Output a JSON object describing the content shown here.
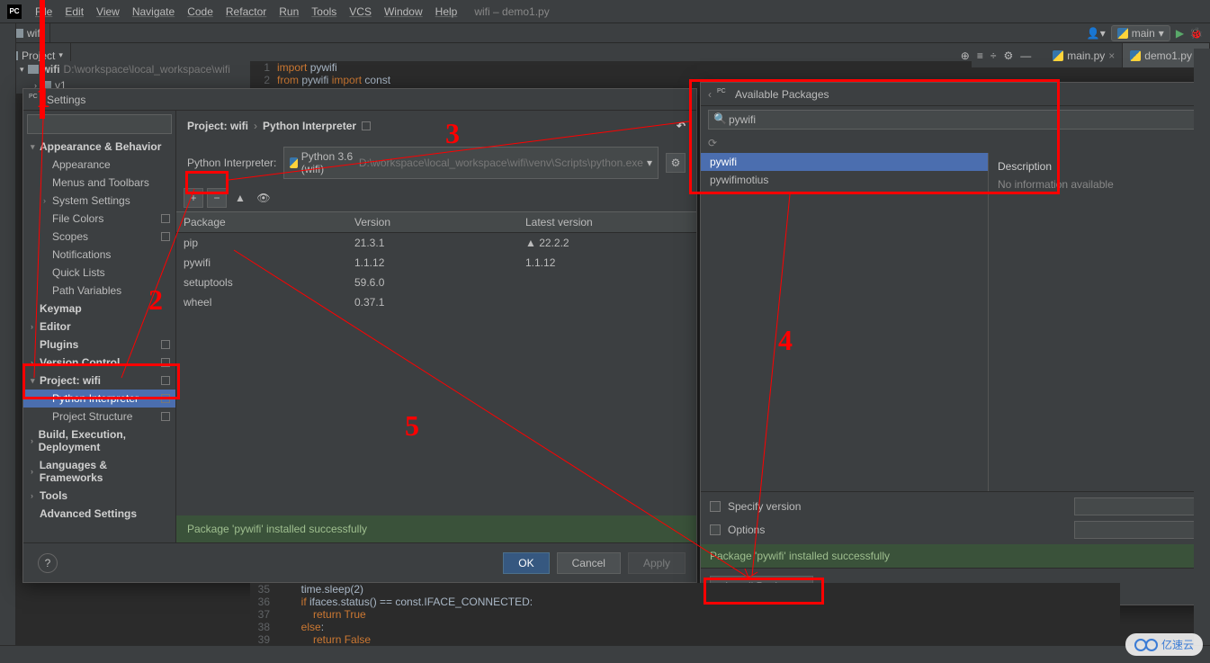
{
  "menubar": {
    "items": [
      "File",
      "Edit",
      "View",
      "Navigate",
      "Code",
      "Refactor",
      "Run",
      "Tools",
      "VCS",
      "Window",
      "Help"
    ],
    "title": "wifi – demo1.py"
  },
  "tabstrip": {
    "project_tab": "wifi"
  },
  "run_config": {
    "label": "main",
    "user_icon": "▾"
  },
  "toolbar": {
    "project_label": "Project",
    "tabs": [
      {
        "name": "main.py",
        "active": false
      },
      {
        "name": "demo1.py",
        "active": true
      }
    ]
  },
  "project_tree": {
    "root": "wifi",
    "root_path": "D:\\workspace\\local_workspace\\wifi",
    "child": "v1"
  },
  "editor_top": {
    "lines": [
      {
        "n": "1",
        "html": "import pywifi"
      },
      {
        "n": "2",
        "html": "from pywifi import const"
      }
    ]
  },
  "editor_bottom": {
    "lines": [
      {
        "n": "35",
        "text": "        time.sleep(2)"
      },
      {
        "n": "36",
        "text": "        if ifaces.status() == const.IFACE_CONNECTED:"
      },
      {
        "n": "37",
        "text": "            return True"
      },
      {
        "n": "38",
        "text": "        else:"
      },
      {
        "n": "39",
        "text": "            return False"
      }
    ]
  },
  "settings": {
    "title": "Settings",
    "search_placeholder": "",
    "tree": [
      {
        "label": "Appearance & Behavior",
        "level": 0,
        "chev": "▾",
        "bold": true
      },
      {
        "label": "Appearance",
        "level": 1
      },
      {
        "label": "Menus and Toolbars",
        "level": 1
      },
      {
        "label": "System Settings",
        "level": 1,
        "chev": "›"
      },
      {
        "label": "File Colors",
        "level": 1,
        "badge": true
      },
      {
        "label": "Scopes",
        "level": 1,
        "badge": true
      },
      {
        "label": "Notifications",
        "level": 1
      },
      {
        "label": "Quick Lists",
        "level": 1
      },
      {
        "label": "Path Variables",
        "level": 1
      },
      {
        "label": "Keymap",
        "level": 0,
        "bold": true
      },
      {
        "label": "Editor",
        "level": 0,
        "chev": "›",
        "bold": true
      },
      {
        "label": "Plugins",
        "level": 0,
        "bold": true,
        "badge": true
      },
      {
        "label": "Version Control",
        "level": 0,
        "chev": "›",
        "bold": true,
        "badge": true
      },
      {
        "label": "Project: wifi",
        "level": 0,
        "chev": "▾",
        "bold": true,
        "badge": true
      },
      {
        "label": "Python Interpreter",
        "level": 1,
        "selected": true,
        "badge": true
      },
      {
        "label": "Project Structure",
        "level": 1,
        "badge": true
      },
      {
        "label": "Build, Execution, Deployment",
        "level": 0,
        "chev": "›",
        "bold": true
      },
      {
        "label": "Languages & Frameworks",
        "level": 0,
        "chev": "›",
        "bold": true
      },
      {
        "label": "Tools",
        "level": 0,
        "chev": "›",
        "bold": true
      },
      {
        "label": "Advanced Settings",
        "level": 0,
        "bold": true
      }
    ],
    "breadcrumb": {
      "root": "Project: wifi",
      "leaf": "Python Interpreter"
    },
    "interpreter_label": "Python Interpreter:",
    "interpreter_name": "Python 3.6 (wifi)",
    "interpreter_path": "D:\\workspace\\local_workspace\\wifi\\venv\\Scripts\\python.exe",
    "package_columns": {
      "pkg": "Package",
      "ver": "Version",
      "lat": "Latest version"
    },
    "packages": [
      {
        "name": "pip",
        "version": "21.3.1",
        "latest": "22.2.2",
        "upgrade": true
      },
      {
        "name": "pywifi",
        "version": "1.1.12",
        "latest": "1.1.12"
      },
      {
        "name": "setuptools",
        "version": "59.6.0",
        "latest": ""
      },
      {
        "name": "wheel",
        "version": "0.37.1",
        "latest": ""
      }
    ],
    "status": "Package 'pywifi' installed successfully",
    "buttons": {
      "ok": "OK",
      "cancel": "Cancel",
      "apply": "Apply"
    }
  },
  "avail": {
    "title": "Available Packages",
    "search_value": "pywifi",
    "results": [
      {
        "name": "pywifi",
        "selected": true
      },
      {
        "name": "pywifimotius",
        "selected": false
      }
    ],
    "desc_label": "Description",
    "desc_text": "No information available",
    "opt_specify": "Specify version",
    "opt_options": "Options",
    "status": "Package 'pywifi' installed successfully",
    "install_btn": "Install Package"
  },
  "annotations": {
    "nums": [
      "1",
      "2",
      "3",
      "4",
      "5"
    ]
  },
  "watermark": "亿速云",
  "colors": {
    "bg": "#2b2b2b",
    "panel": "#3c3f41",
    "select": "#4b6eaf",
    "red": "#ff0000",
    "text": "#bbbbbb",
    "dim": "#787878",
    "green_bg": "#3a523a",
    "green_fg": "#9fbf8f"
  }
}
